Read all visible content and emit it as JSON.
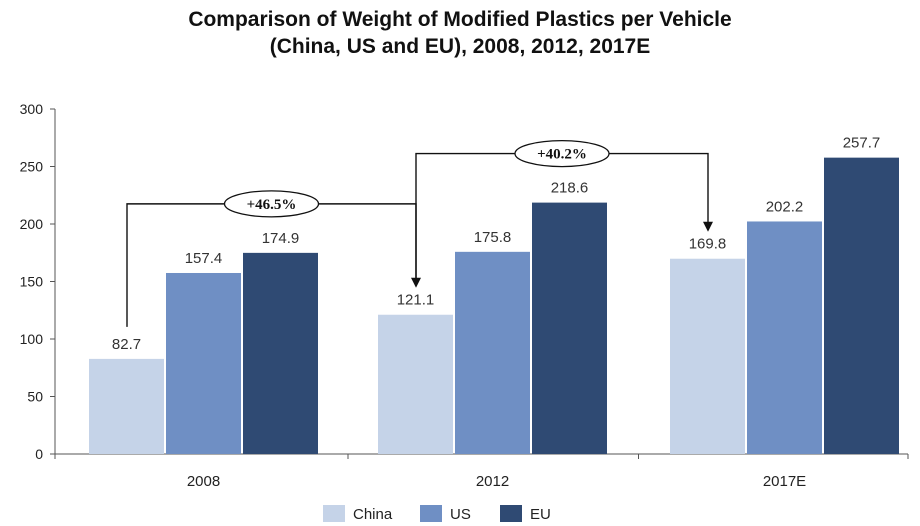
{
  "chart_data": {
    "type": "bar",
    "title_line1": "Comparison of Weight of Modified Plastics per Vehicle",
    "title_line2": "(China, US and EU), 2008, 2012, 2017E",
    "categories": [
      "2008",
      "2012",
      "2017E"
    ],
    "series": [
      {
        "name": "China",
        "values": [
          82.7,
          121.1,
          169.8
        ],
        "color": "#c5d3e8"
      },
      {
        "name": "US",
        "values": [
          157.4,
          175.8,
          202.2
        ],
        "color": "#6f8fc4"
      },
      {
        "name": "EU",
        "values": [
          174.9,
          218.6,
          257.7
        ],
        "color": "#2f4a73"
      }
    ],
    "data_labels": [
      [
        "82.7",
        "157.4",
        "174.9"
      ],
      [
        "121.1",
        "175.8",
        "218.6"
      ],
      [
        "169.8",
        "202.2",
        "257.7"
      ]
    ],
    "ylim": [
      0,
      300
    ],
    "yticks": [
      "0",
      "50",
      "100",
      "150",
      "200",
      "250",
      "300"
    ],
    "legend_position": "bottom",
    "annotations": [
      {
        "text": "+46.5%",
        "from_category": "2008",
        "to_category": "2012",
        "series": "China"
      },
      {
        "text": "+40.2%",
        "from_category": "2012",
        "to_category": "2017E",
        "series": "China"
      }
    ],
    "grid": false
  }
}
